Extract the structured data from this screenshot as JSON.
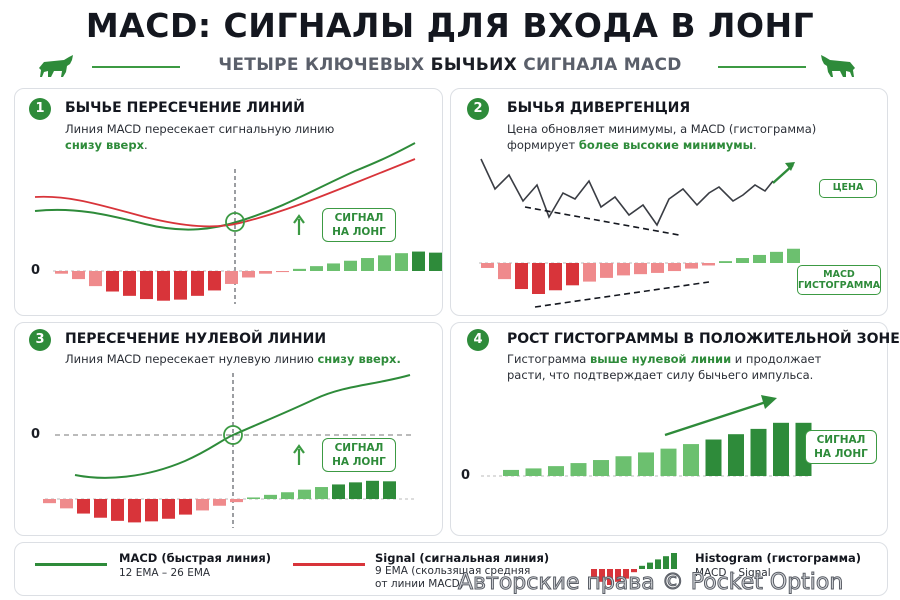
{
  "header": {
    "title": "MACD: СИГНАЛЫ ДЛЯ ВХОДА В ЛОНГ",
    "subtitle_pre": "ЧЕТЫРЕ КЛЮЧЕВЫХ ",
    "subtitle_accent": "БЫЧЬИХ",
    "subtitle_post": " СИГНАЛА MACD"
  },
  "panels": [
    {
      "number": "1",
      "title": "БЫЧЬЕ ПЕРЕСЕЧЕНИЕ ЛИНИЙ",
      "desc_pre": "Линия MACD пересекает сигнальную линию",
      "desc_accent": "снизу вверх",
      "desc_post": ".",
      "zero_label": "0",
      "signal_line1": "СИГНАЛ",
      "signal_line2": "НА ЛОНГ",
      "histogram": [
        -0.5,
        -1.5,
        -2.8,
        -3.8,
        -4.6,
        -5.2,
        -5.5,
        -5.3,
        -4.6,
        -3.6,
        -2.4,
        -1.2,
        -0.5,
        -0.2,
        0.4,
        0.9,
        1.4,
        1.9,
        2.4,
        2.9,
        3.3,
        3.6,
        3.4
      ]
    },
    {
      "number": "2",
      "title": "БЫЧЬЯ ДИВЕРГЕНЦИЯ",
      "desc_pre": "Цена обновляет минимумы, а MACD (гистограмма) формирует ",
      "desc_accent": "более высокие минимумы",
      "desc_post": ".",
      "price_tag": "ЦЕНА",
      "macd_tag_line1": "MACD",
      "macd_tag_line2": "ГИСТОГРАММА",
      "histogram": [
        -0.8,
        -2.6,
        -4.2,
        -5.0,
        -4.4,
        -3.6,
        -3.0,
        -2.4,
        -2.0,
        -1.8,
        -1.6,
        -1.3,
        -0.9,
        -0.4,
        0.3,
        0.8,
        1.3,
        1.8,
        2.3
      ]
    },
    {
      "number": "3",
      "title": "ПЕРЕСЕЧЕНИЕ НУЛЕВОЙ ЛИНИИ",
      "desc_pre": "Линия MACD пересекает нулевую линию ",
      "desc_accent": "снизу вверх.",
      "desc_post": "",
      "zero_label": "0",
      "signal_line1": "СИГНАЛ",
      "signal_line2": "НА ЛОНГ",
      "histogram": [
        -0.8,
        -1.8,
        -2.8,
        -3.6,
        -4.2,
        -4.5,
        -4.3,
        -3.8,
        -3.0,
        -2.2,
        -1.3,
        -0.6,
        0.3,
        0.8,
        1.3,
        1.8,
        2.3,
        2.8,
        3.2,
        3.5,
        3.4
      ]
    },
    {
      "number": "4",
      "title": "РОСТ ГИСТОГРАММЫ В ПОЛОЖИТЕЛЬНОЙ ЗОНЕ",
      "desc_pre": "Гистограмма ",
      "desc_accent": "выше нулевой линии",
      "desc_post": " и продолжает расти, что подтверждает силу бычьего импульса.",
      "zero_label": "0",
      "signal_line1": "СИГНАЛ",
      "signal_line2": "НА ЛОНГ",
      "histogram": [
        0.8,
        1.0,
        1.3,
        1.7,
        2.1,
        2.6,
        3.1,
        3.6,
        4.2,
        4.8,
        5.5,
        6.2,
        7.0,
        7.0
      ]
    }
  ],
  "legend": {
    "macd_title": "MACD (быстрая линия)",
    "macd_text": "12 EMA – 26 EMA",
    "signal_title": "Signal (сигнальная линия)",
    "signal_text1": "9 EMA (скользящая средняя",
    "signal_text2": "от линии MACD)",
    "hist_title": "Histogram (гистограмма)",
    "hist_text": "MACD – Signal"
  },
  "watermark": "Авторские права © Pocket Option",
  "colors": {
    "green": "#2e8b3a",
    "green_light": "#6cc06f",
    "red": "#d8343a",
    "red_light": "#ef8a8c",
    "gray_line": "#3a3d44"
  }
}
